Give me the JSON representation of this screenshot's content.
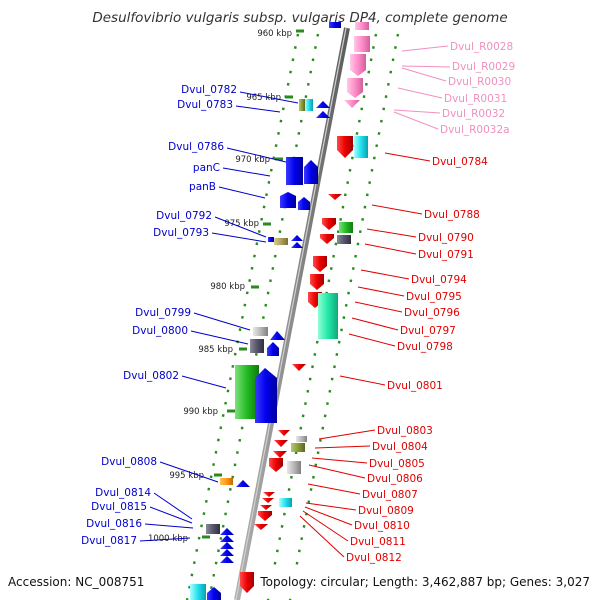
{
  "title": "Desulfovibrio vulgaris subsp. vulgaris DP4, complete genome",
  "footer": {
    "accession": "Accession: NC_008751",
    "topology": "Topology: circular; Length: 3,462,887 bp; Genes: 3,027"
  },
  "colors": {
    "backbone": "#8c8c8c",
    "track_dots": "#2a8a1f",
    "left_labels": "#0000cc",
    "right_labels": "#e00000",
    "rna_labels": "#f090c0"
  },
  "ticks": [
    "960 kbp",
    "965 kbp",
    "970 kbp",
    "975 kbp",
    "980 kbp",
    "985 kbp",
    "990 kbp",
    "995 kbp",
    "1000 kbp"
  ],
  "left_labels": [
    "Dvul_0782",
    "Dvul_0783",
    "Dvul_0786",
    "panC",
    "panB",
    "Dvul_0792",
    "Dvul_0793",
    "Dvul_0799",
    "Dvul_0800",
    "Dvul_0802",
    "Dvul_0808",
    "Dvul_0814",
    "Dvul_0815",
    "Dvul_0816",
    "Dvul_0817"
  ],
  "rna_labels": [
    "Dvul_R0028",
    "Dvul_R0029",
    "Dvul_R0030",
    "Dvul_R0031",
    "Dvul_R0032",
    "Dvul_R0032a"
  ],
  "right_labels": [
    "Dvul_0784",
    "Dvul_0788",
    "Dvul_0790",
    "Dvul_0791",
    "Dvul_0794",
    "Dvul_0795",
    "Dvul_0796",
    "Dvul_0797",
    "Dvul_0798",
    "Dvul_0801",
    "Dvul_0803",
    "Dvul_0804",
    "Dvul_0805",
    "Dvul_0806",
    "Dvul_0807",
    "Dvul_0809",
    "Dvul_0810",
    "Dvul_0811",
    "Dvul_0812"
  ]
}
